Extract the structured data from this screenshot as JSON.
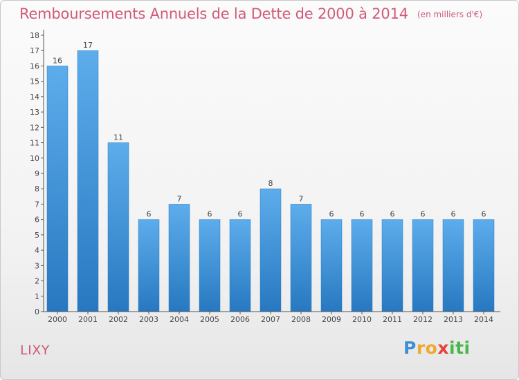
{
  "chart_data": {
    "type": "bar",
    "title": "Remboursements Annuels de la Dette de 2000 à 2014",
    "unit_note": "(en milliers d'€)",
    "xlabel": "",
    "ylabel": "",
    "categories": [
      "2000",
      "2001",
      "2002",
      "2003",
      "2004",
      "2005",
      "2006",
      "2007",
      "2008",
      "2009",
      "2010",
      "2011",
      "2012",
      "2013",
      "2014"
    ],
    "values": [
      16,
      17,
      11,
      6,
      7,
      6,
      6,
      8,
      7,
      6,
      6,
      6,
      6,
      6,
      6
    ],
    "ylim": [
      0,
      18
    ],
    "yticks": [
      0,
      1,
      2,
      3,
      4,
      5,
      6,
      7,
      8,
      9,
      10,
      11,
      12,
      13,
      14,
      15,
      16,
      17,
      18
    ],
    "grid": false,
    "bar_color": "#3d8fd6",
    "bar_color_light": "#5dadec",
    "bar_color_dark": "#2778c0",
    "title_color": "#d05a78"
  },
  "commune": "LIXY",
  "logo": {
    "letters": [
      "P",
      "r",
      "o",
      "x",
      "i",
      "t",
      "i"
    ],
    "colors": [
      "#3c8fd8",
      "#f0a830",
      "#f0a830",
      "#e8403a",
      "#48b848",
      "#48b848",
      "#48b848"
    ]
  }
}
